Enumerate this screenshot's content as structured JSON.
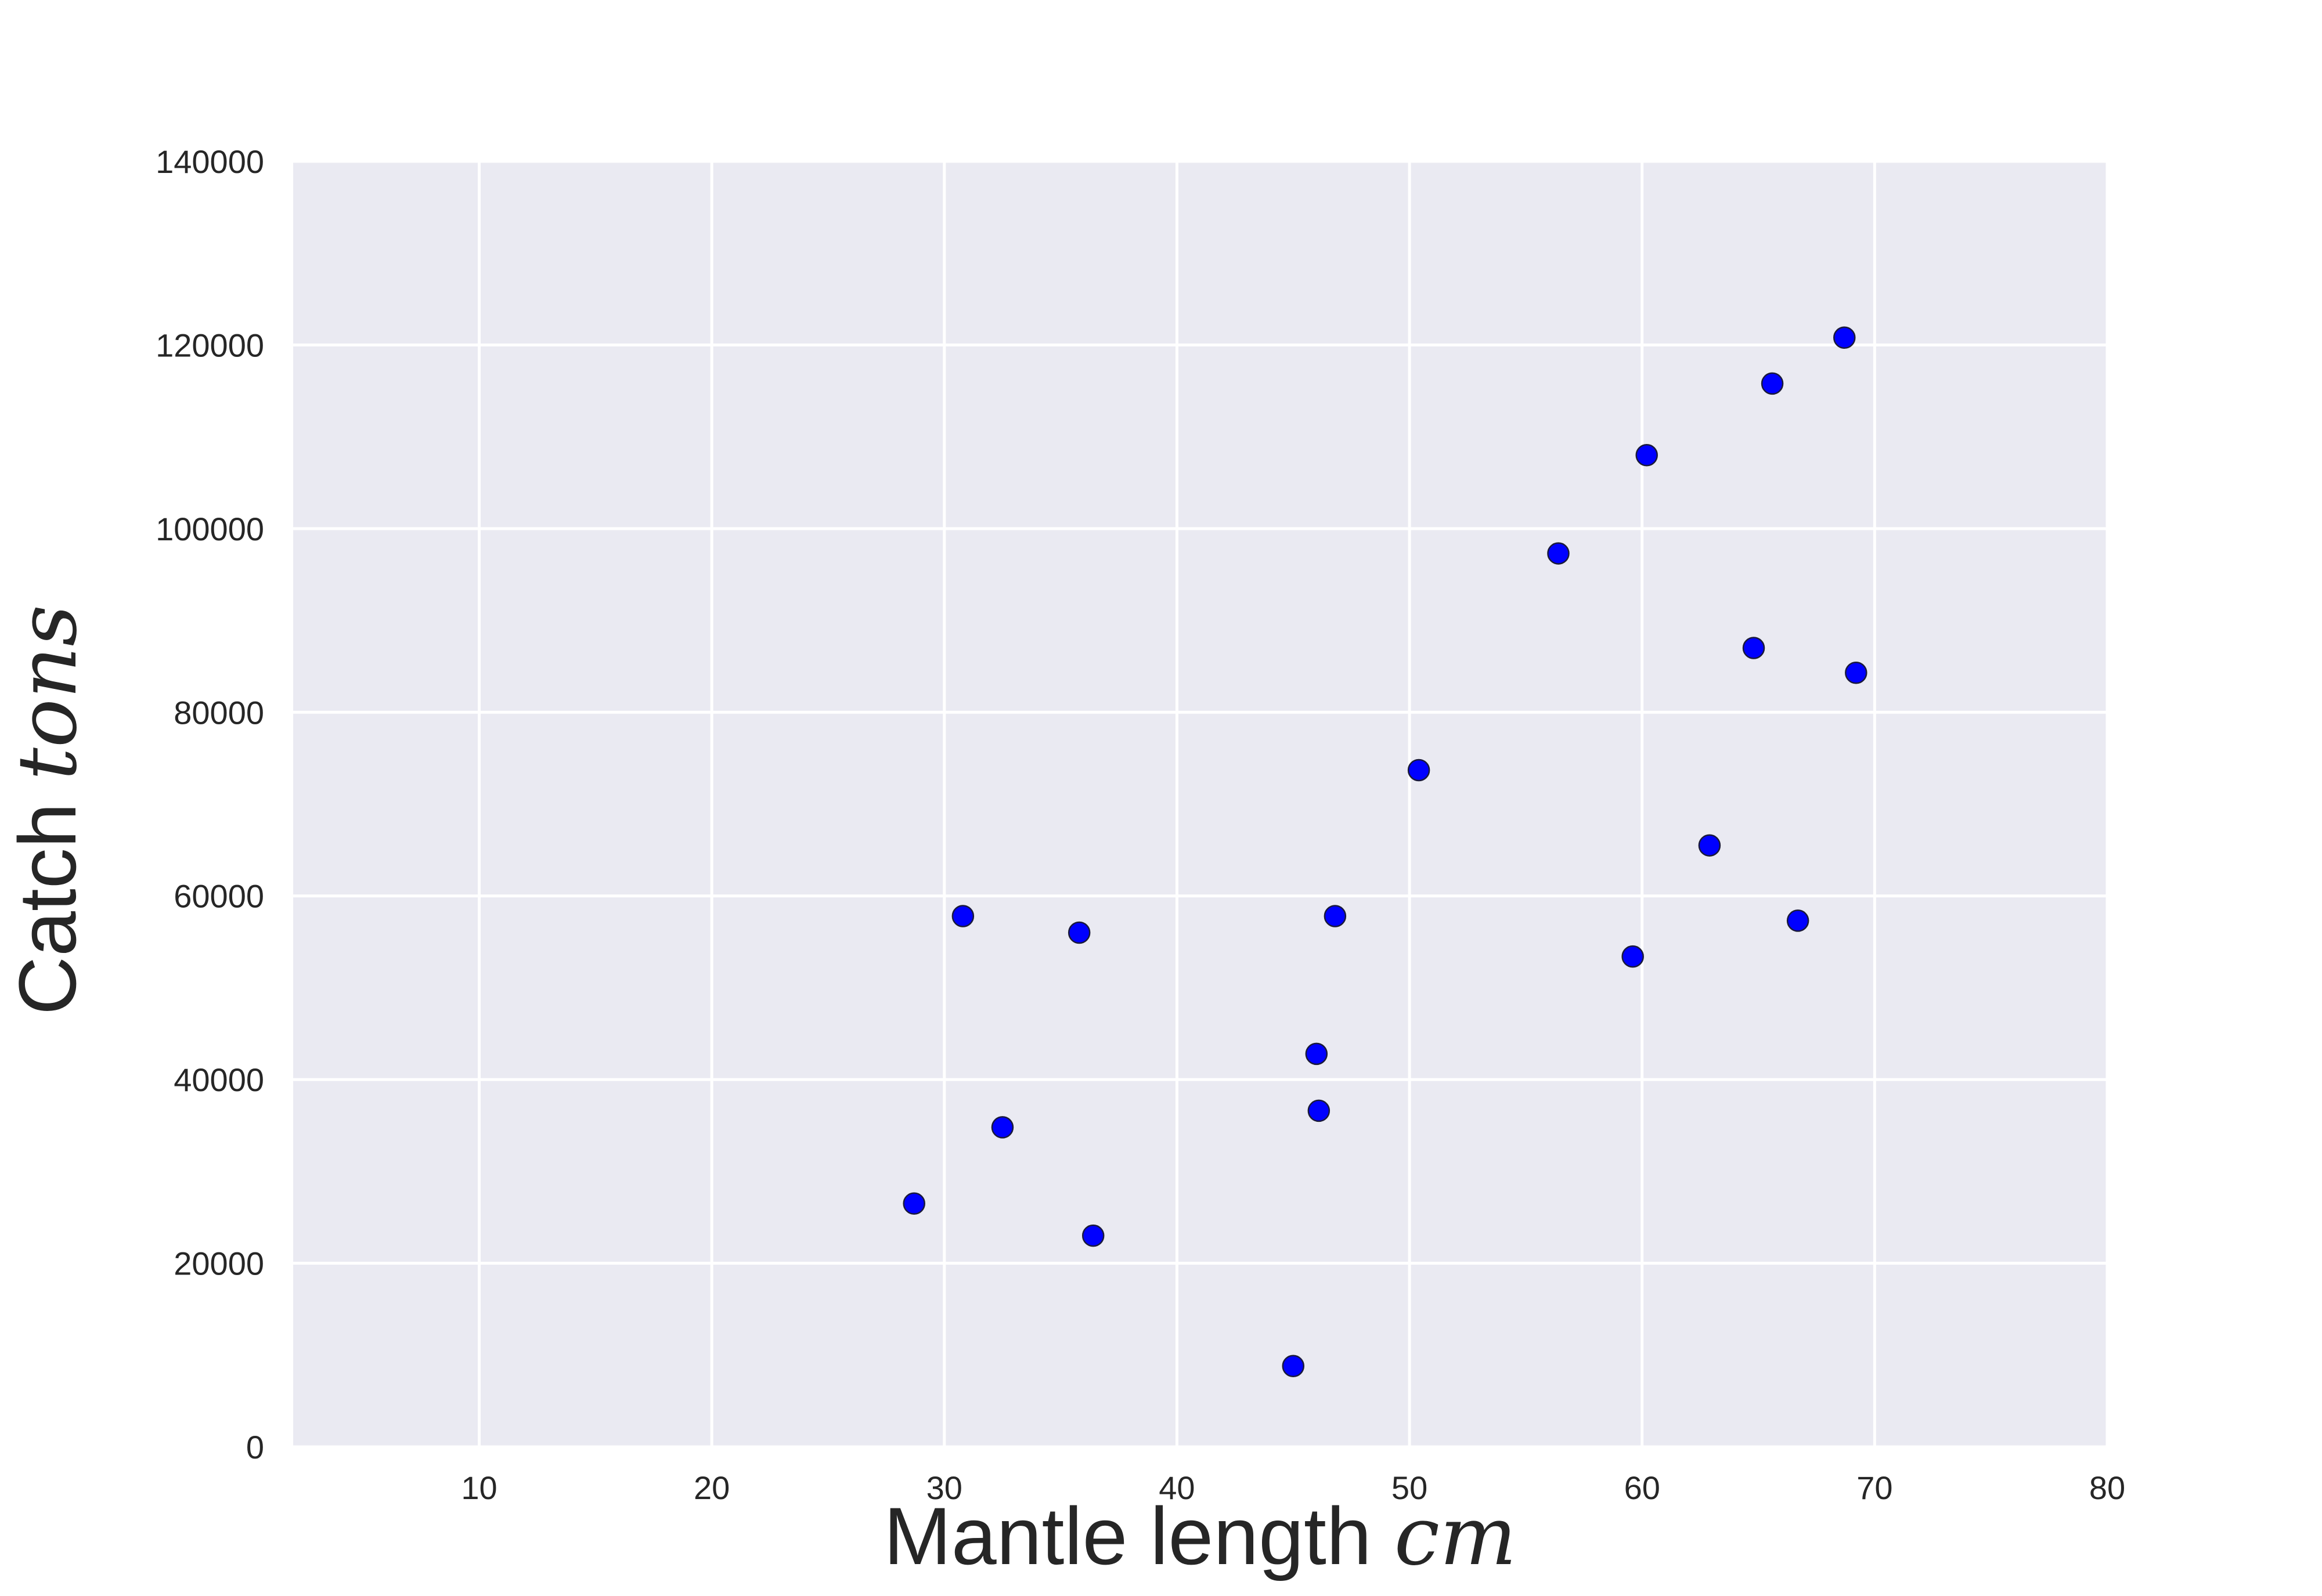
{
  "chart_data": {
    "type": "scatter",
    "xlabel_text": "Mantle length ",
    "xlabel_math": "cm",
    "ylabel_text": "Catch ",
    "ylabel_math": "tons",
    "xlim": [
      2,
      80
    ],
    "ylim": [
      0,
      140000
    ],
    "x_ticks": [
      10,
      20,
      30,
      40,
      50,
      60,
      70,
      80
    ],
    "y_ticks": [
      0,
      20000,
      40000,
      60000,
      80000,
      100000,
      120000,
      140000
    ],
    "grid": true,
    "background": "#eaeaf2",
    "marker_color": "#0000ff",
    "points": [
      {
        "x": 28.7,
        "y": 26500
      },
      {
        "x": 30.8,
        "y": 57800
      },
      {
        "x": 32.5,
        "y": 34800
      },
      {
        "x": 35.8,
        "y": 56000
      },
      {
        "x": 36.4,
        "y": 23000
      },
      {
        "x": 45.0,
        "y": 8800
      },
      {
        "x": 46.0,
        "y": 42800
      },
      {
        "x": 46.1,
        "y": 36600
      },
      {
        "x": 46.8,
        "y": 57800
      },
      {
        "x": 50.4,
        "y": 73700
      },
      {
        "x": 56.4,
        "y": 97300
      },
      {
        "x": 59.6,
        "y": 53400
      },
      {
        "x": 60.2,
        "y": 108000
      },
      {
        "x": 62.9,
        "y": 65500
      },
      {
        "x": 64.8,
        "y": 87000
      },
      {
        "x": 65.6,
        "y": 115800
      },
      {
        "x": 66.7,
        "y": 57300
      },
      {
        "x": 68.7,
        "y": 120800
      },
      {
        "x": 69.2,
        "y": 84300
      }
    ]
  }
}
